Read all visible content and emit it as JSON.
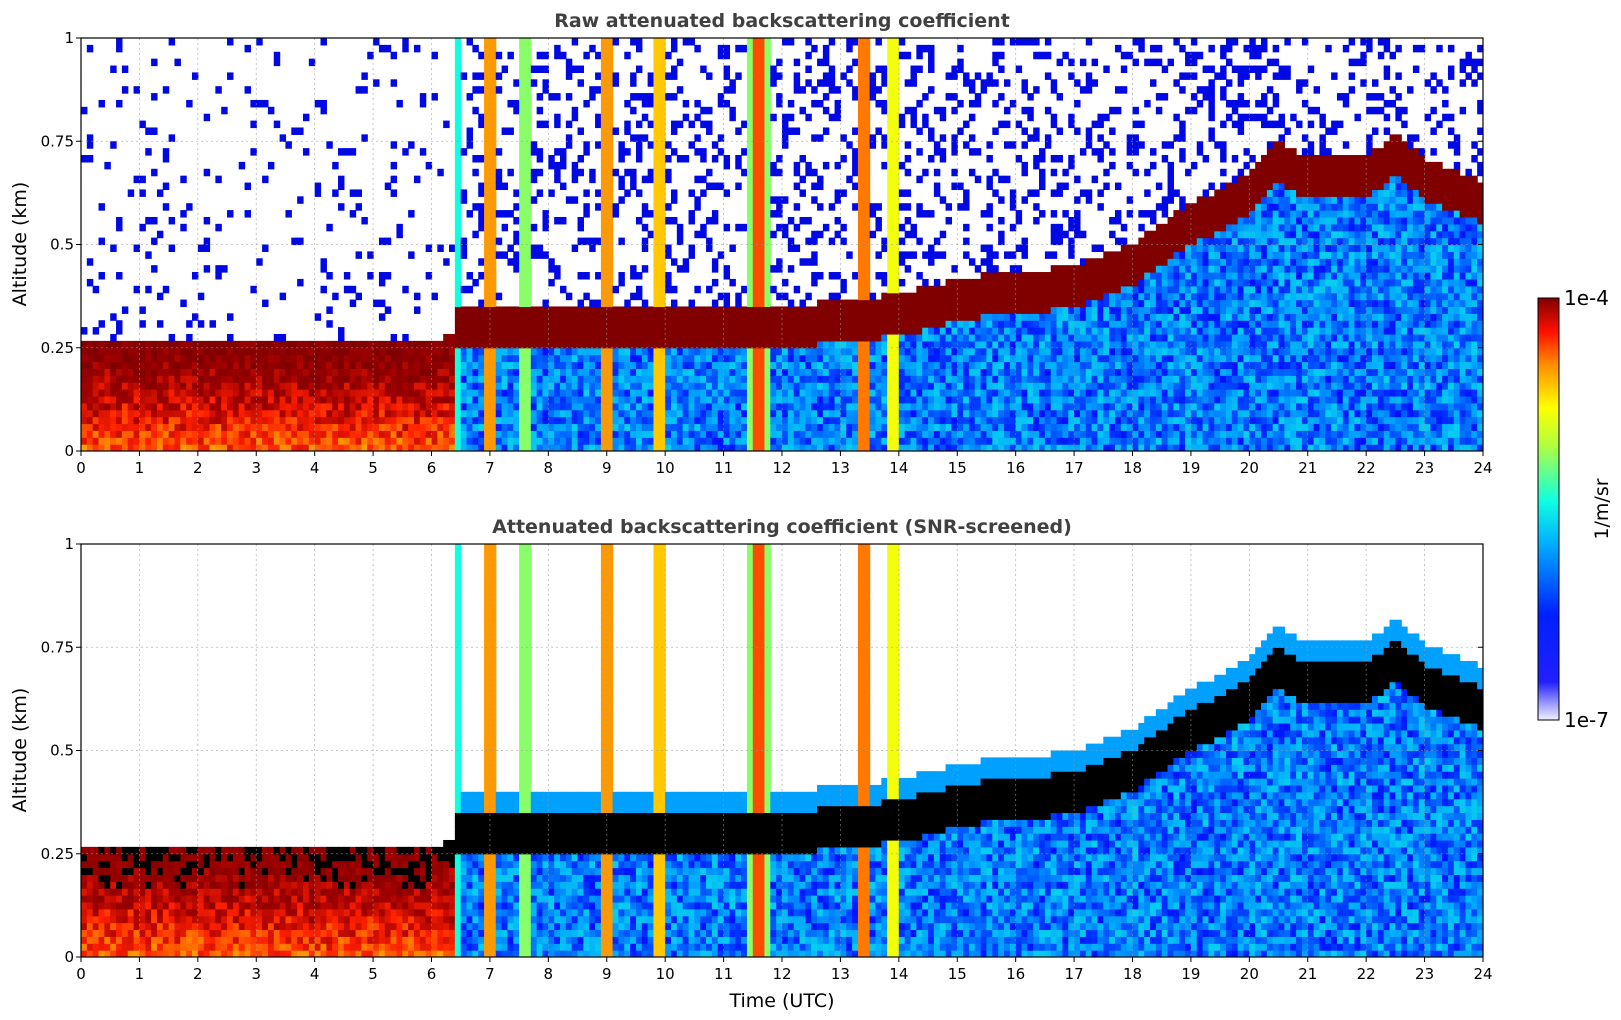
{
  "chart_data": [
    {
      "type": "heatmap",
      "title": "Raw attenuated backscattering coefficient",
      "xlabel": "",
      "ylabel": "Altitude (km)",
      "xlim": [
        0,
        24
      ],
      "ylim": [
        0,
        1
      ],
      "xticks": [
        "0",
        "1",
        "2",
        "3",
        "4",
        "5",
        "6",
        "7",
        "8",
        "9",
        "10",
        "11",
        "12",
        "13",
        "14",
        "15",
        "16",
        "17",
        "18",
        "19",
        "20",
        "21",
        "22",
        "23",
        "24"
      ],
      "yticks": [
        "0",
        "0.25",
        "0.5",
        "0.75",
        "1"
      ],
      "grid": true,
      "layer_top_km": [
        [
          0,
          0.27
        ],
        [
          2,
          0.27
        ],
        [
          4,
          0.26
        ],
        [
          6,
          0.26
        ],
        [
          6.5,
          0.3
        ],
        [
          8,
          0.3
        ],
        [
          12,
          0.3
        ],
        [
          14,
          0.33
        ],
        [
          15.5,
          0.38
        ],
        [
          16,
          0.38
        ],
        [
          17,
          0.4
        ],
        [
          18,
          0.45
        ],
        [
          19,
          0.55
        ],
        [
          20,
          0.62
        ],
        [
          20.5,
          0.7
        ],
        [
          21,
          0.66
        ],
        [
          22,
          0.66
        ],
        [
          22.5,
          0.72
        ],
        [
          23,
          0.66
        ],
        [
          24,
          0.6
        ]
      ]
    },
    {
      "type": "heatmap",
      "title": "Attenuated backscattering coefficient (SNR-screened)",
      "xlabel": "Time (UTC)",
      "ylabel": "Altitude (km)",
      "xlim": [
        0,
        24
      ],
      "ylim": [
        0,
        1
      ],
      "xticks": [
        "0",
        "1",
        "2",
        "3",
        "4",
        "5",
        "6",
        "7",
        "8",
        "9",
        "10",
        "11",
        "12",
        "13",
        "14",
        "15",
        "16",
        "17",
        "18",
        "19",
        "20",
        "21",
        "22",
        "23",
        "24"
      ],
      "yticks": [
        "0",
        "0.25",
        "0.5",
        "0.75",
        "1"
      ],
      "grid": true
    }
  ],
  "colorbar": {
    "label": "1/m/sr",
    "max_label": "1e-4",
    "min_label": "1e-7",
    "colormap": "jet",
    "colors": [
      "#f2f2ff",
      "#0000c8",
      "#0010ff",
      "#00a0ff",
      "#10ffe0",
      "#a0ff50",
      "#ffff00",
      "#ff9000",
      "#ff2000",
      "#a00000",
      "#800000"
    ]
  }
}
